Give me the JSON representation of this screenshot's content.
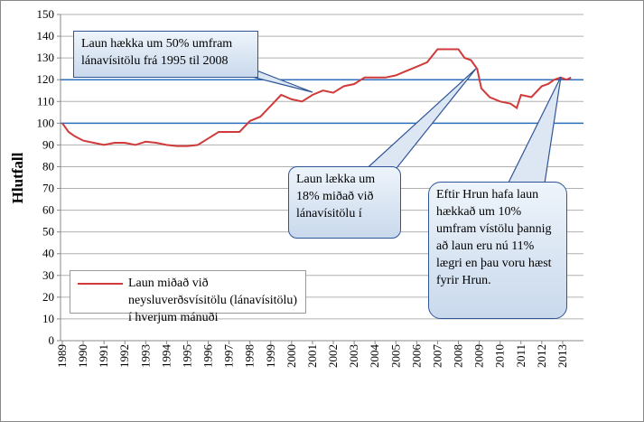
{
  "chart_data": {
    "type": "line",
    "y_label": "Hlutfall",
    "xlim": [
      1989,
      2014
    ],
    "xticks": [
      1989,
      1990,
      1991,
      1992,
      1993,
      1994,
      1995,
      1996,
      1997,
      1998,
      1999,
      2000,
      2001,
      2002,
      2003,
      2004,
      2005,
      2006,
      2007,
      2008,
      2009,
      2010,
      2011,
      2012,
      2013
    ],
    "ylim": [
      0,
      150
    ],
    "yticks": [
      0,
      10,
      20,
      30,
      40,
      50,
      60,
      70,
      80,
      90,
      100,
      110,
      120,
      130,
      140,
      150
    ],
    "grid": true,
    "reference_lines": {
      "values": [
        100,
        120
      ],
      "color": "#2f6fc0"
    },
    "series": [
      {
        "name": "Laun miðað við neysluverðsvísitölu (lánavísitölu) í hverjum mánuði",
        "color": "#d03a3a",
        "x": [
          1989.0,
          1989.3,
          1989.6,
          1990.0,
          1990.5,
          1991.0,
          1991.5,
          1992.0,
          1992.5,
          1993.0,
          1993.5,
          1994.0,
          1994.5,
          1995.0,
          1995.5,
          1996.0,
          1996.5,
          1997.0,
          1997.5,
          1998.0,
          1998.5,
          1999.0,
          1999.5,
          2000.0,
          2000.5,
          2001.0,
          2001.5,
          2002.0,
          2002.5,
          2003.0,
          2003.5,
          2004.0,
          2004.5,
          2005.0,
          2005.5,
          2006.0,
          2006.5,
          2007.0,
          2007.5,
          2008.0,
          2008.3,
          2008.6,
          2008.9,
          2009.1,
          2009.5,
          2010.0,
          2010.5,
          2010.8,
          2011.0,
          2011.5,
          2012.0,
          2012.3,
          2012.6,
          2012.9,
          2013.2,
          2013.4
        ],
        "values": [
          100,
          96,
          94,
          92,
          91,
          90,
          91,
          91,
          90,
          91.5,
          91,
          90,
          89.5,
          89.5,
          90,
          93,
          96,
          96,
          96,
          101,
          103,
          108,
          113,
          111,
          110,
          113,
          115,
          114,
          117,
          118,
          121,
          121,
          121,
          122,
          124,
          126,
          128,
          134,
          134,
          134,
          130,
          129,
          125,
          116,
          112,
          110,
          109,
          107,
          113,
          112,
          117,
          118,
          120,
          121,
          120,
          121
        ]
      }
    ],
    "annotations": [
      "Laun hækka um 50% umfram lánavísitölu  frá 1995 til 2008",
      "Laun lækka um 18% miðað við lánavísitölu í",
      "Eftir Hrun hafa laun hækkað um 10% umfram vístölu þannig að laun eru nú 11% lægri en þau voru hæst fyrir Hrun."
    ]
  }
}
